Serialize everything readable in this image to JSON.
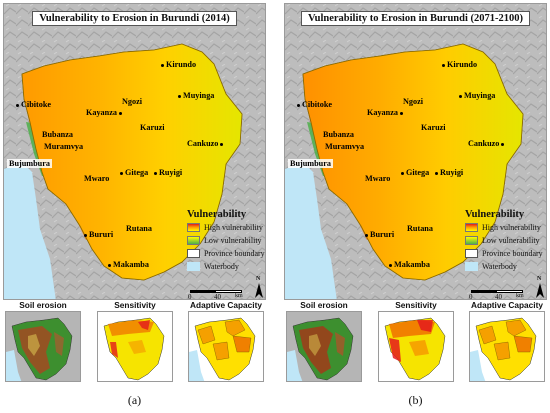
{
  "panels": [
    {
      "id": "a",
      "title": "Vulnerability to Erosion in Burundi (2014)",
      "caption": "(a)",
      "subplots": [
        "Soil erosion",
        "Sensitivity",
        "Adaptive Capacity"
      ]
    },
    {
      "id": "b",
      "title": "Vulnerability to Erosion in Burundi (2071-2100)",
      "caption": "(b)",
      "subplots": [
        "Soil erosion",
        "Sensitivity",
        "Adaptive Capacity"
      ]
    }
  ],
  "cities": {
    "kirundo": "Kirundo",
    "cibitoke": "Cibitoke",
    "kayanza": "Kayanza",
    "ngozi": "Ngozi",
    "muyinga": "Muyinga",
    "bubanza": "Bubanza",
    "karuzi": "Karuzi",
    "cankuzo": "Cankuzo",
    "muramvya": "Muramvya",
    "bujumbura": "Bujumbura",
    "ruyigi": "Ruyigi",
    "mwaro": "Mwaro",
    "gitega": "Gitega",
    "bururi": "Bururi",
    "rutana": "Rutana",
    "makamba": "Makamba"
  },
  "legend": {
    "title": "Vulnerability",
    "high": "High vulnerability",
    "low": "Low vulnerability",
    "province": "Province boundary",
    "water": "Waterbody"
  },
  "scalebar": {
    "zero": "0",
    "forty": "40",
    "unit": "km"
  },
  "north_label": "N",
  "colors": {
    "high": "#e41a1c",
    "mid": "#ff9a00",
    "low_mid": "#ffff00",
    "low": "#4daf4a",
    "water": "#bfe6f7",
    "relief": "#b8b8b8"
  }
}
